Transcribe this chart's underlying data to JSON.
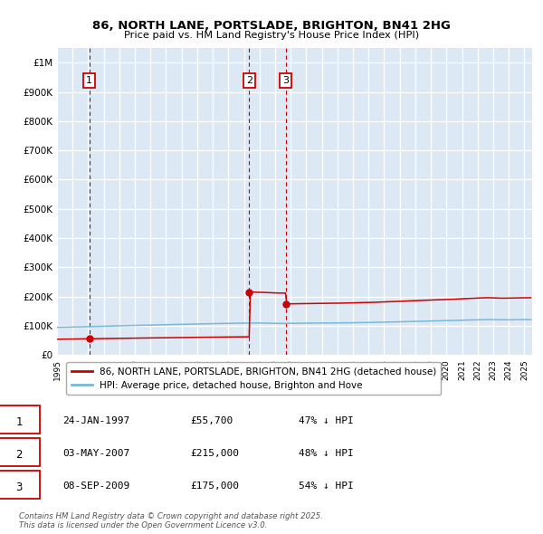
{
  "title1": "86, NORTH LANE, PORTSLADE, BRIGHTON, BN41 2HG",
  "title2": "Price paid vs. HM Land Registry's House Price Index (HPI)",
  "bg_color": "#dce9f5",
  "grid_color": "#ffffff",
  "red_line_color": "#cc0000",
  "blue_line_color": "#7ab8d9",
  "transactions": [
    {
      "label": "1",
      "date": 1997.07,
      "price": 55700
    },
    {
      "label": "2",
      "date": 2007.34,
      "price": 215000
    },
    {
      "label": "3",
      "date": 2009.67,
      "price": 175000
    }
  ],
  "legend_entries": [
    {
      "label": "86, NORTH LANE, PORTSLADE, BRIGHTON, BN41 2HG (detached house)",
      "color": "#cc0000"
    },
    {
      "label": "HPI: Average price, detached house, Brighton and Hove",
      "color": "#7ab8d9"
    }
  ],
  "table_rows": [
    {
      "num": "1",
      "date": "24-JAN-1997",
      "price": "£55,700",
      "note": "47% ↓ HPI"
    },
    {
      "num": "2",
      "date": "03-MAY-2007",
      "price": "£215,000",
      "note": "48% ↓ HPI"
    },
    {
      "num": "3",
      "date": "08-SEP-2009",
      "price": "£175,000",
      "note": "54% ↓ HPI"
    }
  ],
  "footer": "Contains HM Land Registry data © Crown copyright and database right 2025.\nThis data is licensed under the Open Government Licence v3.0.",
  "ylim": [
    0,
    1050000
  ],
  "xlim": [
    1995.0,
    2025.5
  ],
  "yticks": [
    0,
    100000,
    200000,
    300000,
    400000,
    500000,
    600000,
    700000,
    800000,
    900000,
    1000000
  ],
  "ytick_labels": [
    "£0",
    "£100K",
    "£200K",
    "£300K",
    "£400K",
    "£500K",
    "£600K",
    "£700K",
    "£800K",
    "£900K",
    "£1M"
  ]
}
